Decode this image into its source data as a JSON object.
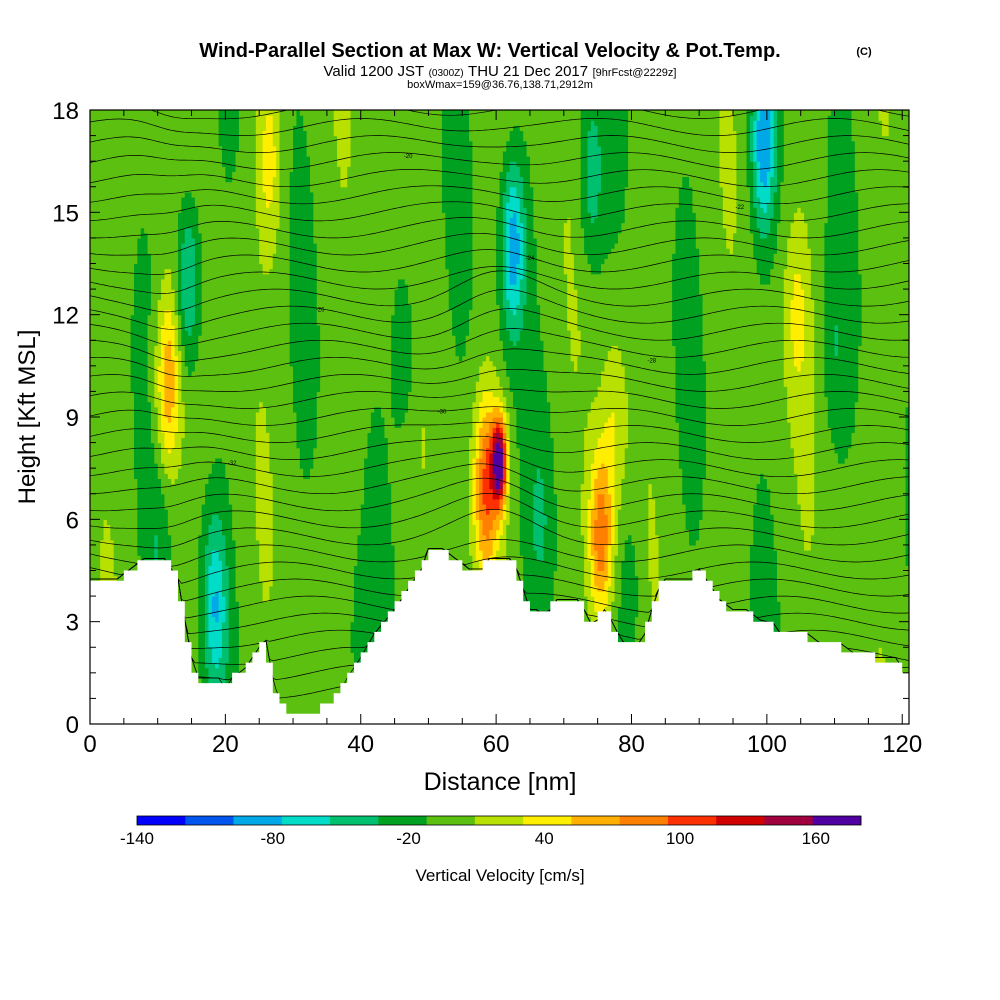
{
  "header": {
    "title_main": "Wind-Parallel Section at Max W: Vertical Velocity & Pot.Temp.",
    "title_mark": "(C)",
    "line2_a": "Valid 1200 JST",
    "line2_b": "(0300Z)",
    "line2_c": "THU 21 Dec 2017",
    "line2_d": "[9hrFcst@2229z]",
    "line3": "boxWmax=159@36.76,138.71,2912m"
  },
  "chart_data": {
    "type": "heatmap",
    "xlabel": "Distance [nm]",
    "ylabel": "Height [Kft MSL]",
    "xlim": [
      0,
      121
    ],
    "ylim": [
      0,
      18
    ],
    "x_ticks": [
      "0",
      "20",
      "40",
      "60",
      "80",
      "100",
      "120"
    ],
    "y_ticks": [
      "0",
      "3",
      "6",
      "9",
      "12",
      "15",
      "18"
    ],
    "grid": false,
    "colorbar": {
      "label": "Vertical Velocity [cm/s]",
      "orientation": "horizontal",
      "position": "bottom",
      "min": -140,
      "max": 180,
      "step": 20,
      "tick_labels": [
        "-140",
        "-80",
        "-20",
        "40",
        "100",
        "160"
      ],
      "colors": [
        "#0000ff",
        "#0055ee",
        "#00a8e8",
        "#00dcc8",
        "#00c070",
        "#00a020",
        "#5cc010",
        "#b8e000",
        "#ffee00",
        "#ffb000",
        "#ff8000",
        "#ff3000",
        "#d00000",
        "#a00040",
        "#5000a0"
      ]
    },
    "terrain_kft": [
      [
        0,
        4.2
      ],
      [
        4,
        4.2
      ],
      [
        6,
        4.5
      ],
      [
        8,
        4.8
      ],
      [
        11,
        4.8
      ],
      [
        13,
        4.2
      ],
      [
        14,
        3.0
      ],
      [
        15,
        1.9
      ],
      [
        16,
        1.3
      ],
      [
        19,
        1.3
      ],
      [
        20,
        1.0
      ],
      [
        21,
        1.3
      ],
      [
        23,
        1.6
      ],
      [
        24,
        1.9
      ],
      [
        25,
        2.2
      ],
      [
        26,
        2.4
      ],
      [
        27,
        1.3
      ],
      [
        28,
        0.6
      ],
      [
        29,
        0.3
      ],
      [
        34,
        0.3
      ],
      [
        35,
        0.6
      ],
      [
        37,
        0.9
      ],
      [
        38,
        1.3
      ],
      [
        40,
        1.9
      ],
      [
        42,
        2.6
      ],
      [
        45,
        3.3
      ],
      [
        47,
        3.9
      ],
      [
        49,
        4.5
      ],
      [
        50,
        5.1
      ],
      [
        52,
        5.1
      ],
      [
        54,
        4.8
      ],
      [
        56,
        4.5
      ],
      [
        58,
        4.5
      ],
      [
        59,
        4.8
      ],
      [
        62,
        4.8
      ],
      [
        63,
        4.5
      ],
      [
        64,
        3.9
      ],
      [
        65,
        3.3
      ],
      [
        66,
        3.3
      ],
      [
        67,
        3.0
      ],
      [
        68,
        3.3
      ],
      [
        69,
        3.6
      ],
      [
        72,
        3.6
      ],
      [
        73,
        3.3
      ],
      [
        74,
        2.9
      ],
      [
        75,
        3.0
      ],
      [
        76,
        3.3
      ],
      [
        77,
        3.0
      ],
      [
        78,
        2.6
      ],
      [
        79,
        2.3
      ],
      [
        81,
        2.3
      ],
      [
        82,
        2.6
      ],
      [
        83,
        3.3
      ],
      [
        84,
        3.9
      ],
      [
        85,
        4.2
      ],
      [
        89,
        4.2
      ],
      [
        90,
        4.5
      ],
      [
        91,
        4.2
      ],
      [
        92,
        3.9
      ],
      [
        93,
        3.6
      ],
      [
        95,
        3.3
      ],
      [
        97,
        3.3
      ],
      [
        99,
        3.0
      ],
      [
        101,
        2.9
      ],
      [
        102,
        2.6
      ],
      [
        106,
        2.6
      ],
      [
        108,
        2.3
      ],
      [
        111,
        2.3
      ],
      [
        113,
        2.0
      ],
      [
        115,
        2.0
      ],
      [
        116,
        1.9
      ],
      [
        119,
        1.9
      ],
      [
        120,
        1.6
      ],
      [
        121,
        1.6
      ]
    ],
    "updraft_cores": [
      {
        "x": 60.5,
        "z": 7.7,
        "value": 159
      },
      {
        "x": 58.5,
        "z": 7.0,
        "value": 90
      },
      {
        "x": 75.5,
        "z": 5.5,
        "value": 90
      },
      {
        "x": 11.5,
        "z": 10.0,
        "value": 70
      },
      {
        "x": 26.5,
        "z": 16.5,
        "value": 40
      },
      {
        "x": 77.5,
        "z": 9.0,
        "value": 30
      },
      {
        "x": 104.5,
        "z": 12.0,
        "value": 30
      }
    ],
    "downdraft_cores": [
      {
        "x": 62.5,
        "z": 14.0,
        "value": -80
      },
      {
        "x": 99.5,
        "z": 17.0,
        "value": -80
      },
      {
        "x": 14.5,
        "z": 13.0,
        "value": -60
      },
      {
        "x": 18.5,
        "z": 3.5,
        "value": -60
      },
      {
        "x": 74.0,
        "z": 16.0,
        "value": -40
      },
      {
        "x": 46.5,
        "z": 11.0,
        "value": -30
      },
      {
        "x": 66.5,
        "z": 6.0,
        "value": -20
      },
      {
        "x": 110.0,
        "z": 11.0,
        "value": -20
      },
      {
        "x": 40.0,
        "z": 2.0,
        "value": -20
      },
      {
        "x": 80.0,
        "z": 4.0,
        "value": -20
      },
      {
        "x": 10.0,
        "z": 5.0,
        "value": -20
      }
    ],
    "potential_temperature_contour_labels": [
      "-32",
      "-30",
      "-28",
      "-26",
      "-24",
      "-22",
      "-20",
      "-18",
      "-16",
      "-14",
      "-12",
      "-10"
    ]
  }
}
